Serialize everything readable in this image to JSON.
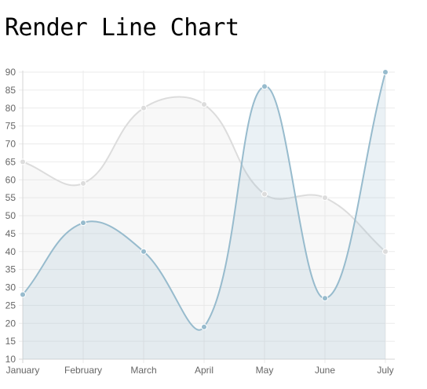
{
  "title": "Render Line Chart",
  "colors": {
    "series_gray_line": "#dcdcdc",
    "series_gray_fill": "#dcdcdc",
    "series_blue_line": "#97bbcd",
    "series_blue_fill": "#97bbcd",
    "grid": "#ebebeb",
    "axis": "#d6d6d6"
  },
  "chart_data": {
    "type": "line",
    "title": "Render Line Chart",
    "categories": [
      "January",
      "February",
      "March",
      "April",
      "May",
      "June",
      "July"
    ],
    "series": [
      {
        "values": [
          65,
          59,
          80,
          81,
          56,
          55,
          40
        ]
      },
      {
        "values": [
          28,
          48,
          40,
          19,
          86,
          27,
          90
        ]
      }
    ],
    "ylim": [
      10,
      90
    ],
    "yticks": [
      10,
      15,
      20,
      25,
      30,
      35,
      40,
      45,
      50,
      55,
      60,
      65,
      70,
      75,
      80,
      85,
      90
    ],
    "grid": true,
    "smooth": true,
    "filled": true,
    "xlabel": "",
    "ylabel": ""
  }
}
